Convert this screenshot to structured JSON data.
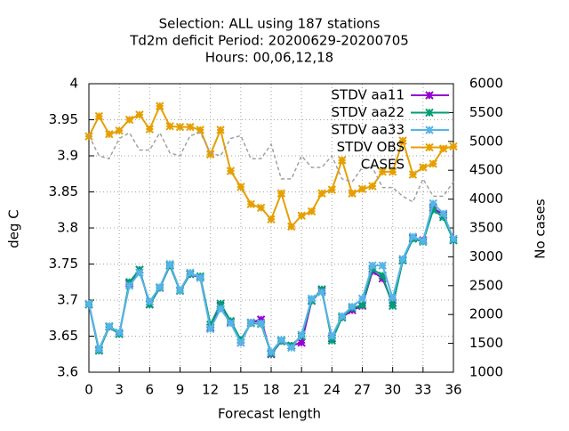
{
  "chart_data": {
    "type": "line",
    "title": [
      "Selection: ALL using   187 stations",
      "Td2m deficit   Period: 20200629-20200705",
      "Hours:  00,06,12,18"
    ],
    "xlabel": "Forecast length",
    "ylabel": "deg C",
    "y2label": "No cases",
    "x": [
      0,
      1,
      2,
      3,
      4,
      5,
      6,
      7,
      8,
      9,
      10,
      11,
      12,
      13,
      14,
      15,
      16,
      17,
      18,
      19,
      20,
      21,
      22,
      23,
      24,
      25,
      26,
      27,
      28,
      29,
      30,
      31,
      32,
      33,
      34,
      35,
      36
    ],
    "xlim": [
      0,
      36
    ],
    "xticks": [
      0,
      3,
      6,
      9,
      12,
      15,
      18,
      21,
      24,
      27,
      30,
      33,
      36
    ],
    "ylim": [
      3.6,
      4
    ],
    "yticks": [
      3.6,
      3.65,
      3.7,
      3.75,
      3.8,
      3.85,
      3.9,
      3.95,
      4
    ],
    "y2lim": [
      1000,
      6000
    ],
    "y2ticks": [
      1000,
      1500,
      2000,
      2500,
      3000,
      3500,
      4000,
      4500,
      5000,
      5500,
      6000
    ],
    "grid": true,
    "series": [
      {
        "name": "STDV aa11",
        "color": "#9400d3",
        "marker": true,
        "values": [
          3.694,
          3.63,
          3.663,
          3.653,
          3.723,
          3.742,
          3.694,
          3.717,
          3.748,
          3.713,
          3.736,
          3.731,
          3.662,
          3.692,
          3.669,
          3.641,
          3.669,
          3.673,
          3.625,
          3.643,
          3.637,
          3.641,
          3.699,
          3.713,
          3.647,
          3.676,
          3.686,
          3.692,
          3.74,
          3.73,
          3.696,
          3.755,
          3.786,
          3.783,
          3.828,
          3.818,
          3.783
        ]
      },
      {
        "name": "STDV aa22",
        "color": "#009e73",
        "marker": true,
        "values": [
          3.694,
          3.63,
          3.663,
          3.653,
          3.725,
          3.742,
          3.694,
          3.717,
          3.748,
          3.713,
          3.736,
          3.733,
          3.666,
          3.695,
          3.671,
          3.645,
          3.668,
          3.667,
          3.626,
          3.643,
          3.637,
          3.65,
          3.699,
          3.715,
          3.644,
          3.676,
          3.689,
          3.693,
          3.743,
          3.734,
          3.692,
          3.755,
          3.785,
          3.781,
          3.825,
          3.815,
          3.783
        ]
      },
      {
        "name": "STDV aa33",
        "color": "#56b4e9",
        "marker": true,
        "values": [
          3.695,
          3.632,
          3.664,
          3.655,
          3.72,
          3.738,
          3.698,
          3.718,
          3.75,
          3.714,
          3.738,
          3.731,
          3.66,
          3.688,
          3.668,
          3.641,
          3.669,
          3.668,
          3.628,
          3.645,
          3.634,
          3.652,
          3.702,
          3.711,
          3.65,
          3.678,
          3.691,
          3.702,
          3.748,
          3.748,
          3.703,
          3.757,
          3.788,
          3.782,
          3.834,
          3.82,
          3.785
        ]
      },
      {
        "name": "STDV OBS",
        "color": "#e69f00",
        "marker": true,
        "values": [
          3.927,
          3.955,
          3.93,
          3.935,
          3.95,
          3.957,
          3.937,
          3.969,
          3.941,
          3.94,
          3.94,
          3.936,
          3.902,
          3.936,
          3.879,
          3.857,
          3.833,
          3.828,
          3.812,
          3.848,
          3.802,
          3.817,
          3.823,
          3.848,
          3.853,
          3.894,
          3.848,
          3.854,
          3.858,
          3.878,
          3.878,
          3.921,
          3.874,
          3.884,
          3.889,
          3.91,
          3.913
        ]
      },
      {
        "name": "CASES",
        "color": "#a0a0a0",
        "marker": false,
        "axis": "y2",
        "values": [
          5100,
          4750,
          4700,
          5050,
          5150,
          4850,
          4850,
          5150,
          4800,
          4750,
          5100,
          5150,
          4800,
          4750,
          5050,
          5100,
          4700,
          4700,
          4950,
          4350,
          4350,
          4750,
          4550,
          4550,
          4750,
          4350,
          4300,
          4550,
          4550,
          4200,
          4200,
          4050,
          3950,
          4350,
          4050,
          4050,
          4300
        ]
      }
    ]
  }
}
